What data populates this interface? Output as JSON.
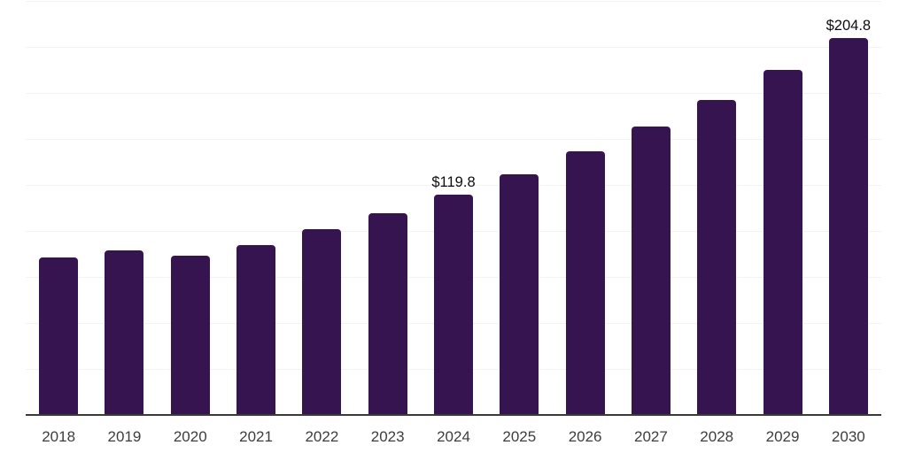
{
  "chart_data": {
    "type": "bar",
    "title": "",
    "xlabel": "",
    "ylabel": "",
    "categories": [
      "2018",
      "2019",
      "2020",
      "2021",
      "2022",
      "2023",
      "2024",
      "2025",
      "2026",
      "2027",
      "2028",
      "2029",
      "2030"
    ],
    "values": [
      85.4,
      89.6,
      86.5,
      92.5,
      101.0,
      109.4,
      119.8,
      131.0,
      143.2,
      156.6,
      171.2,
      187.3,
      204.8
    ],
    "data_labels": {
      "2024": "$119.8",
      "2030": "$204.8"
    },
    "ylim": [
      0,
      225
    ],
    "grid_step": 25,
    "grid": true,
    "y_tick_labels_visible": false,
    "legend_position": "none",
    "bar_color": "#361450",
    "gridline_color": "#f3f3f3",
    "axis_line_color": "#3a3a3a",
    "tick_label_color": "#3d3d3d",
    "data_label_color": "#0d0d0d",
    "background_color": "#ffffff"
  }
}
